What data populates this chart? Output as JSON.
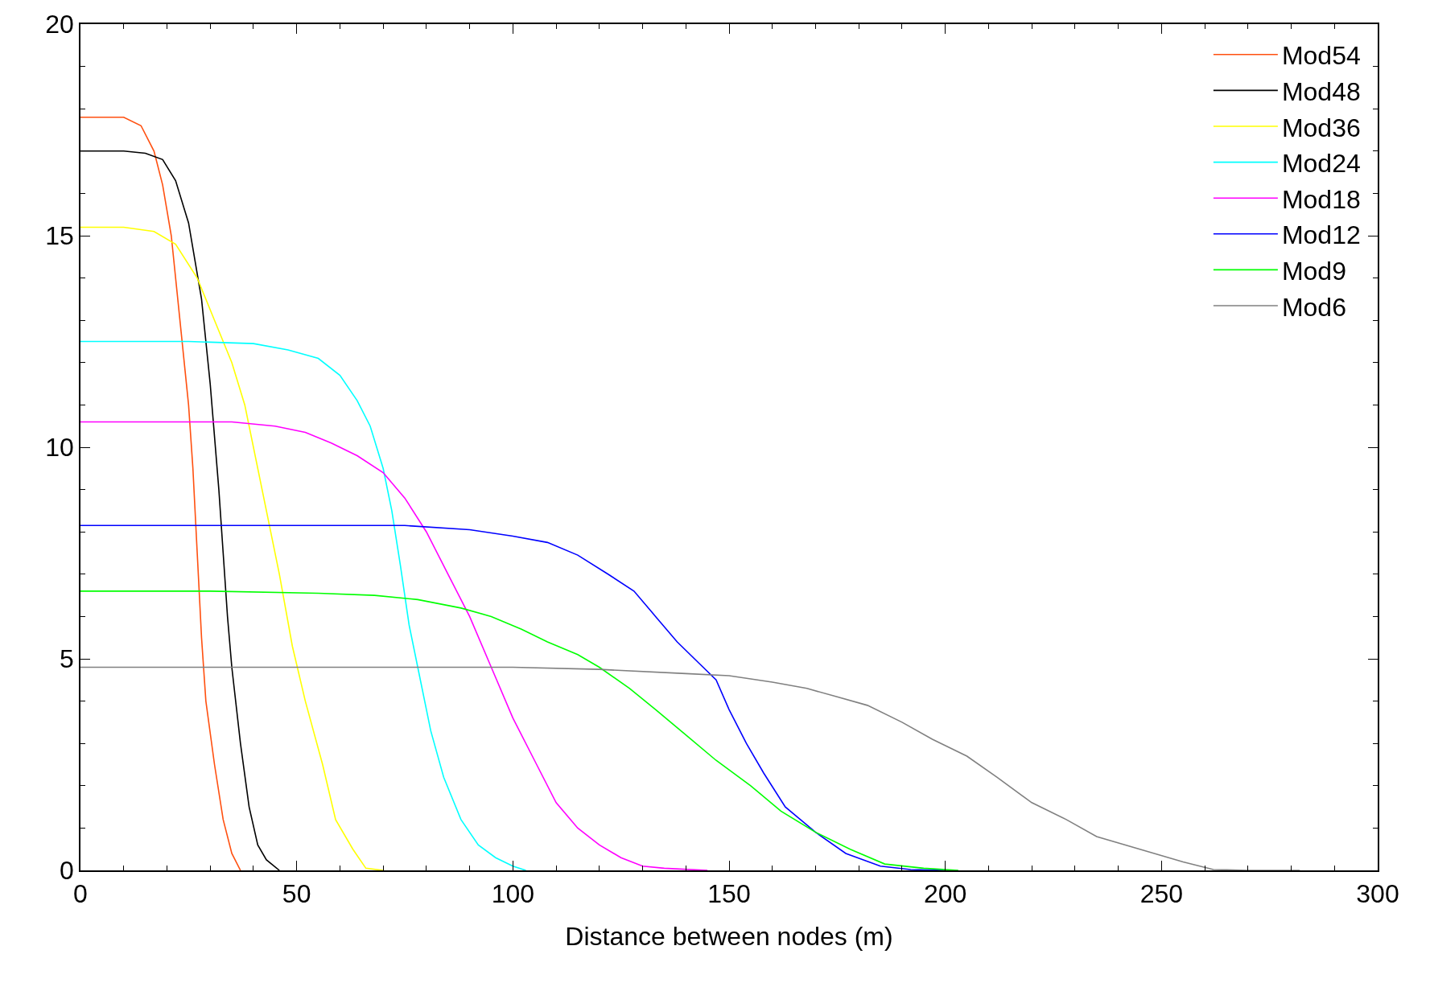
{
  "chart_data": {
    "type": "line",
    "xlabel": "Distance between nodes (m)",
    "xlim": [
      0,
      300
    ],
    "xticks": [
      0,
      50,
      100,
      150,
      200,
      250,
      300
    ],
    "ylim": [
      0,
      20
    ],
    "yticks": [
      0,
      5,
      10,
      15,
      20
    ],
    "legend": "top right",
    "marker": "none",
    "line_style": "solid",
    "series": [
      {
        "name": "Mod54",
        "color": "#ff5010",
        "x": [
          0,
          5,
          10,
          14,
          17,
          19,
          21,
          23,
          25,
          26,
          27,
          28,
          29,
          31,
          33,
          35,
          37
        ],
        "values": [
          17.8,
          17.8,
          17.8,
          17.6,
          17.0,
          16.2,
          15,
          13,
          11,
          9.5,
          7.5,
          5.5,
          4,
          2.5,
          1.2,
          0.4,
          0
        ]
      },
      {
        "name": "Mod48",
        "color": "#000000",
        "x": [
          0,
          10,
          15,
          19,
          22,
          25,
          28,
          30,
          32,
          33,
          34,
          35,
          37,
          39,
          41,
          43,
          46
        ],
        "values": [
          17,
          17,
          16.95,
          16.8,
          16.3,
          15.3,
          13.5,
          11.5,
          9,
          7.5,
          6,
          4.8,
          3,
          1.5,
          0.6,
          0.25,
          0
        ]
      },
      {
        "name": "Mod36",
        "color": "#ffff00",
        "x": [
          0,
          10,
          17,
          22,
          27,
          31,
          35,
          38,
          42,
          46,
          49,
          52,
          56,
          59,
          63,
          66,
          70
        ],
        "values": [
          15.2,
          15.2,
          15.1,
          14.8,
          14,
          13,
          12,
          11,
          9,
          7,
          5.3,
          4,
          2.5,
          1.2,
          0.5,
          0.05,
          0
        ]
      },
      {
        "name": "Mod24",
        "color": "#00ffff",
        "x": [
          0,
          25,
          40,
          48,
          55,
          60,
          64,
          67,
          70,
          72,
          74,
          76,
          78,
          81,
          84,
          88,
          92,
          96,
          100,
          103
        ],
        "values": [
          12.5,
          12.5,
          12.45,
          12.3,
          12.1,
          11.7,
          11.1,
          10.5,
          9.5,
          8.5,
          7.2,
          5.8,
          4.8,
          3.3,
          2.2,
          1.2,
          0.6,
          0.3,
          0.1,
          0
        ]
      },
      {
        "name": "Mod18",
        "color": "#ff00ff",
        "x": [
          0,
          20,
          35,
          45,
          52,
          58,
          64,
          70,
          75,
          80,
          85,
          90,
          95,
          100,
          105,
          110,
          115,
          120,
          125,
          130,
          135,
          145
        ],
        "values": [
          10.6,
          10.6,
          10.6,
          10.5,
          10.35,
          10.1,
          9.8,
          9.4,
          8.8,
          8,
          7,
          6,
          4.8,
          3.6,
          2.6,
          1.6,
          1,
          0.6,
          0.3,
          0.1,
          0.05,
          0
        ]
      },
      {
        "name": "Mod12",
        "color": "#0000ff",
        "x": [
          0,
          50,
          75,
          90,
          100,
          108,
          115,
          122,
          128,
          133,
          138,
          143,
          147,
          150,
          154,
          158,
          163,
          170,
          177,
          185,
          192,
          200
        ],
        "values": [
          8.15,
          8.15,
          8.15,
          8.05,
          7.9,
          7.75,
          7.45,
          7,
          6.6,
          6,
          5.4,
          4.9,
          4.5,
          3.8,
          3,
          2.3,
          1.5,
          0.9,
          0.4,
          0.1,
          0.02,
          0
        ]
      },
      {
        "name": "Mod9",
        "color": "#00ff00",
        "x": [
          0,
          30,
          55,
          68,
          78,
          88,
          95,
          102,
          108,
          115,
          120,
          127,
          133,
          140,
          147,
          155,
          162,
          170,
          178,
          186,
          195,
          203
        ],
        "values": [
          6.6,
          6.6,
          6.55,
          6.5,
          6.4,
          6.2,
          6,
          5.7,
          5.4,
          5.1,
          4.8,
          4.3,
          3.8,
          3.2,
          2.6,
          2,
          1.4,
          0.9,
          0.5,
          0.15,
          0.05,
          0
        ]
      },
      {
        "name": "Mod6",
        "color": "#808080",
        "x": [
          0,
          50,
          100,
          120,
          140,
          150,
          160,
          168,
          175,
          182,
          190,
          197,
          205,
          212,
          220,
          228,
          235,
          245,
          255,
          262,
          270,
          282
        ],
        "values": [
          4.8,
          4.8,
          4.8,
          4.75,
          4.65,
          4.6,
          4.45,
          4.3,
          4.1,
          3.9,
          3.5,
          3.1,
          2.7,
          2.2,
          1.6,
          1.2,
          0.8,
          0.5,
          0.2,
          0.02,
          0,
          0
        ]
      }
    ]
  }
}
